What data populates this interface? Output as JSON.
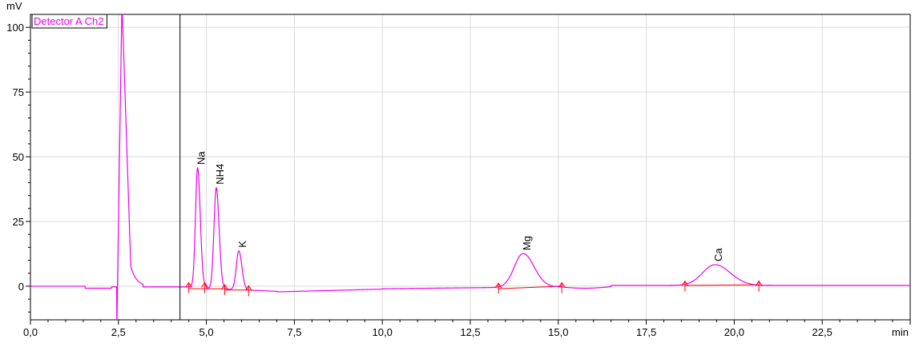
{
  "chart_data": {
    "type": "line",
    "y_unit_label": "mV",
    "x_unit_label": "min",
    "legend": "Detector A Ch2",
    "xlim": [
      0,
      25
    ],
    "ylim": [
      -13,
      105
    ],
    "x_ticks": [
      {
        "value": 0,
        "label": "0,0"
      },
      {
        "value": 2.5,
        "label": "2,5"
      },
      {
        "value": 5,
        "label": "5,0"
      },
      {
        "value": 7.5,
        "label": "7,5"
      },
      {
        "value": 10,
        "label": "10,0"
      },
      {
        "value": 12.5,
        "label": "12,5"
      },
      {
        "value": 15,
        "label": "15,0"
      },
      {
        "value": 17.5,
        "label": "17,5"
      },
      {
        "value": 20,
        "label": "20,0"
      },
      {
        "value": 22.5,
        "label": "22,5"
      }
    ],
    "y_ticks": [
      {
        "value": 0,
        "label": "0"
      },
      {
        "value": 25,
        "label": "25"
      },
      {
        "value": 50,
        "label": "50"
      },
      {
        "value": 75,
        "label": "75"
      },
      {
        "value": 100,
        "label": "100"
      }
    ],
    "grid": true,
    "colors": {
      "trace": "#ee00ee",
      "baseline": "#ff0000",
      "markers": "#ff0000",
      "grid": "#d9d9d9",
      "axes": "#000000"
    },
    "vertical_marker_x": 4.25,
    "solvent_front": {
      "start": 2.45,
      "end": 2.85,
      "top": 110,
      "bottom": -20
    },
    "peaks": [
      {
        "name": "Na",
        "rt": 4.75,
        "height": 46,
        "width": 0.06
      },
      {
        "name": "NH4",
        "rt": 5.28,
        "height": 39,
        "width": 0.065
      },
      {
        "name": "K",
        "rt": 5.92,
        "height": 15,
        "width": 0.07
      },
      {
        "name": "Mg",
        "rt": 14.0,
        "height": 13,
        "width": 0.25
      },
      {
        "name": "Ca",
        "rt": 19.45,
        "height": 8,
        "width": 0.35
      }
    ],
    "integration_baselines": [
      {
        "x": [
          4.5,
          4.95
        ],
        "y": [
          -1,
          -1
        ]
      },
      {
        "x": [
          4.95,
          5.52
        ],
        "y": [
          -1,
          -1
        ]
      },
      {
        "x": [
          5.52,
          6.2
        ],
        "y": [
          -1.5,
          -1.5
        ]
      },
      {
        "x": [
          13.3,
          15.1
        ],
        "y": [
          -1,
          0
        ]
      },
      {
        "x": [
          18.6,
          20.7
        ],
        "y": [
          0.3,
          0.5
        ]
      }
    ],
    "integration_markers": [
      4.5,
      4.95,
      5.52,
      6.2,
      13.3,
      15.1,
      18.6,
      20.7
    ]
  }
}
